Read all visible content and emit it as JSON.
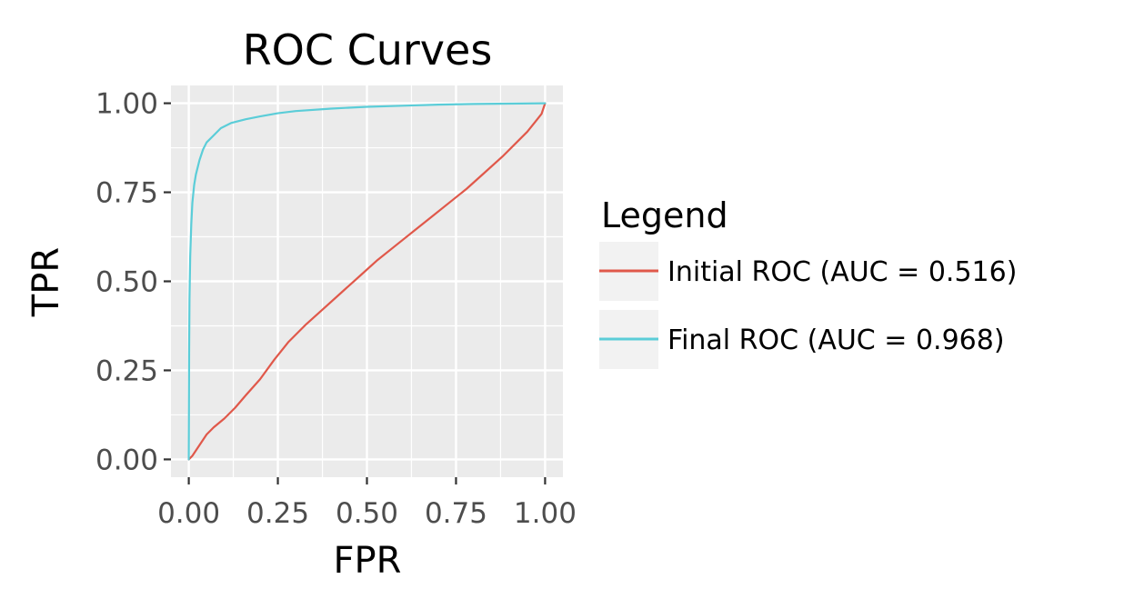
{
  "chart_data": {
    "type": "line",
    "title": "ROC Curves",
    "xlabel": "FPR",
    "ylabel": "TPR",
    "xlim": [
      -0.05,
      1.05
    ],
    "ylim": [
      -0.05,
      1.05
    ],
    "x_ticks": [
      0,
      0.25,
      0.5,
      0.75,
      1
    ],
    "x_tick_labels": [
      "0.00",
      "0.25",
      "0.50",
      "0.75",
      "1.00"
    ],
    "y_ticks": [
      0,
      0.25,
      0.5,
      0.75,
      1
    ],
    "y_tick_labels": [
      "0.00",
      "0.25",
      "0.50",
      "0.75",
      "1.00"
    ],
    "grid": true,
    "legend": {
      "title": "Legend",
      "placement": "right"
    },
    "series": [
      {
        "name": "Initial ROC (AUC = 0.516)",
        "color": "#E0584A",
        "x": [
          0,
          0.01,
          0.03,
          0.05,
          0.07,
          0.1,
          0.13,
          0.16,
          0.2,
          0.24,
          0.28,
          0.33,
          0.38,
          0.43,
          0.48,
          0.53,
          0.58,
          0.63,
          0.68,
          0.73,
          0.78,
          0.83,
          0.88,
          0.92,
          0.95,
          0.97,
          0.99,
          1.0
        ],
        "y": [
          0,
          0.01,
          0.04,
          0.07,
          0.09,
          0.115,
          0.145,
          0.18,
          0.225,
          0.28,
          0.33,
          0.38,
          0.425,
          0.47,
          0.515,
          0.56,
          0.6,
          0.64,
          0.68,
          0.72,
          0.76,
          0.805,
          0.85,
          0.89,
          0.92,
          0.945,
          0.97,
          1.0
        ]
      },
      {
        "name": "Final ROC (AUC = 0.968)",
        "color": "#5BCDD8",
        "x": [
          0,
          0.0005,
          0.001,
          0.002,
          0.004,
          0.007,
          0.01,
          0.015,
          0.02,
          0.03,
          0.04,
          0.05,
          0.07,
          0.09,
          0.12,
          0.16,
          0.2,
          0.25,
          0.3,
          0.4,
          0.5,
          0.6,
          0.7,
          0.8,
          0.9,
          1.0
        ],
        "y": [
          0,
          0.15,
          0.3,
          0.45,
          0.57,
          0.66,
          0.72,
          0.77,
          0.8,
          0.84,
          0.87,
          0.89,
          0.91,
          0.93,
          0.945,
          0.955,
          0.963,
          0.972,
          0.978,
          0.985,
          0.99,
          0.993,
          0.996,
          0.998,
          0.999,
          1.0
        ]
      }
    ]
  }
}
